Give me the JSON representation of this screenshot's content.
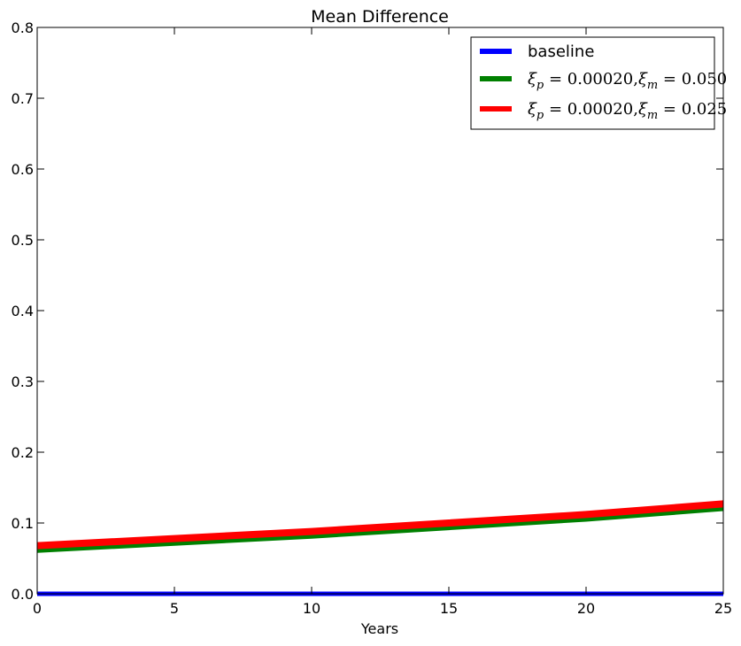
{
  "chart_data": {
    "type": "line",
    "title": "Mean Difference",
    "xlabel": "Years",
    "ylabel": "",
    "xlim": [
      0,
      25
    ],
    "ylim": [
      0.0,
      0.8
    ],
    "xticks": [
      0,
      5,
      10,
      15,
      20,
      25
    ],
    "xtick_labels": [
      "0",
      "5",
      "10",
      "15",
      "20",
      "25"
    ],
    "yticks": [
      0.0,
      0.1,
      0.2,
      0.3,
      0.4,
      0.5,
      0.6,
      0.7,
      0.8
    ],
    "ytick_labels": [
      "0.0",
      "0.1",
      "0.2",
      "0.3",
      "0.4",
      "0.5",
      "0.6",
      "0.7",
      "0.8"
    ],
    "grid": false,
    "legend_position": "top-right",
    "x": [
      0,
      5,
      10,
      15,
      20,
      25
    ],
    "series": [
      {
        "name": "baseline",
        "color": "#0000ff",
        "values": [
          0.0,
          0.0,
          0.0,
          0.0,
          0.0,
          0.0
        ]
      },
      {
        "name": "ξp = 0.00020,ξm = 0.050",
        "legend_math": {
          "xi1_sub": "p",
          "v1": "0.00020",
          "xi2_sub": "m",
          "v2": "0.050"
        },
        "color": "#008000",
        "values": [
          0.061,
          0.071,
          0.081,
          0.093,
          0.105,
          0.12
        ]
      },
      {
        "name": "ξp = 0.00020,ξm = 0.025",
        "legend_math": {
          "xi1_sub": "p",
          "v1": "0.00020",
          "xi2_sub": "m",
          "v2": "0.025"
        },
        "color": "#ff0000",
        "values": [
          0.068,
          0.078,
          0.088,
          0.1,
          0.112,
          0.127
        ]
      }
    ]
  }
}
